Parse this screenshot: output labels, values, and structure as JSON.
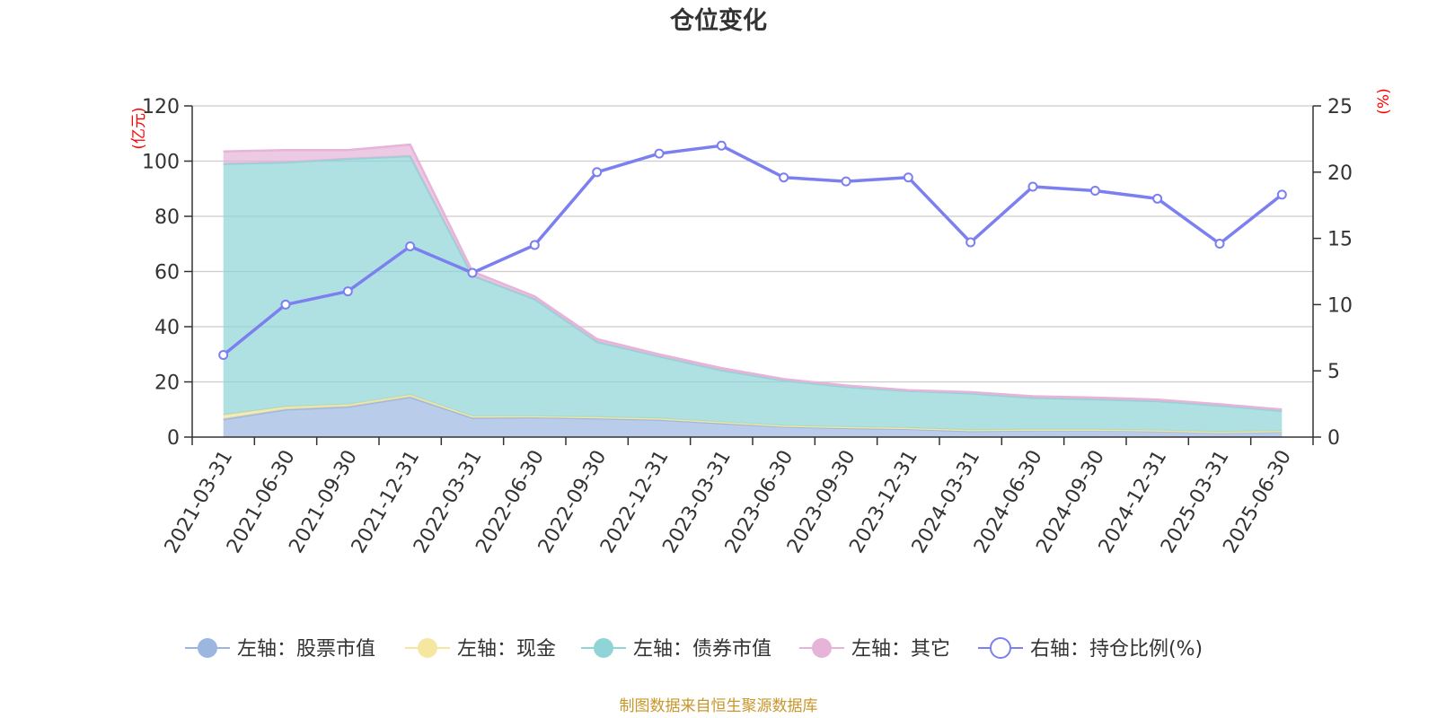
{
  "chart_data": {
    "type": "area",
    "title": "仓位变化",
    "categories": [
      "2021-03-31",
      "2021-06-30",
      "2021-09-30",
      "2021-12-31",
      "2022-03-31",
      "2022-06-30",
      "2022-09-30",
      "2022-12-31",
      "2023-03-31",
      "2023-06-30",
      "2023-09-30",
      "2023-12-31",
      "2024-03-31",
      "2024-06-30",
      "2024-09-30",
      "2024-12-31",
      "2025-03-31",
      "2025-06-30"
    ],
    "left_axis": {
      "unit": "(亿元)",
      "ylim": [
        0,
        120
      ],
      "ticks": [
        "0",
        "20",
        "40",
        "60",
        "80",
        "100",
        "120"
      ]
    },
    "right_axis": {
      "unit": "(%)",
      "ylim": [
        0,
        25
      ],
      "ticks": [
        "0",
        "5",
        "10",
        "15",
        "20",
        "25"
      ]
    },
    "series": [
      {
        "name": "左轴：股票市值",
        "axis": "left",
        "kind": "stacked-area",
        "color": "#9bb7e0",
        "values": [
          6.5,
          10.0,
          11.0,
          14.5,
          7.0,
          7.2,
          6.8,
          6.3,
          5.0,
          3.8,
          3.3,
          3.0,
          2.2,
          2.5,
          2.5,
          2.2,
          1.6,
          2.0
        ]
      },
      {
        "name": "左轴：现金",
        "axis": "left",
        "kind": "stacked-area",
        "color": "#f5e6a0",
        "values": [
          1.5,
          1.0,
          0.8,
          0.8,
          0.5,
          0.3,
          0.4,
          0.4,
          0.4,
          0.3,
          0.3,
          0.3,
          0.3,
          0.2,
          0.2,
          0.2,
          0.2,
          0.2
        ]
      },
      {
        "name": "左轴：债券市值",
        "axis": "left",
        "kind": "stacked-area",
        "color": "#8fd4d6",
        "values": [
          91.0,
          88.5,
          89.0,
          86.5,
          51.0,
          42.5,
          27.3,
          22.5,
          18.8,
          16.4,
          14.6,
          13.4,
          13.3,
          11.5,
          11.0,
          10.6,
          9.6,
          7.3
        ]
      },
      {
        "name": "左轴：其它",
        "axis": "left",
        "kind": "stacked-area",
        "color": "#e6b3d9",
        "values": [
          4.5,
          4.5,
          3.2,
          4.2,
          1.5,
          1.0,
          1.0,
          0.8,
          0.8,
          0.5,
          0.5,
          0.3,
          0.5,
          0.6,
          0.6,
          0.6,
          0.5,
          0.5
        ]
      },
      {
        "name": "右轴：持仓比例(%)",
        "axis": "right",
        "kind": "line",
        "color": "#7b7ff0",
        "values": [
          6.2,
          10.0,
          11.0,
          14.4,
          12.4,
          14.5,
          20.0,
          21.4,
          22.0,
          19.6,
          19.3,
          19.6,
          14.7,
          18.9,
          18.6,
          18.0,
          14.6,
          18.3
        ]
      }
    ],
    "grid": true,
    "legend_position": "bottom"
  },
  "source_note": "制图数据来自恒生聚源数据库"
}
